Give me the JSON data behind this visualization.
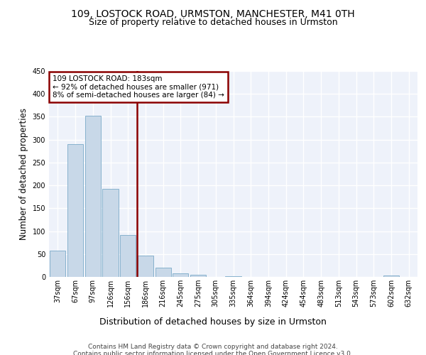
{
  "title1": "109, LOSTOCK ROAD, URMSTON, MANCHESTER, M41 0TH",
  "title2": "Size of property relative to detached houses in Urmston",
  "xlabel": "Distribution of detached houses by size in Urmston",
  "ylabel": "Number of detached properties",
  "bar_labels": [
    "37sqm",
    "67sqm",
    "97sqm",
    "126sqm",
    "156sqm",
    "186sqm",
    "216sqm",
    "245sqm",
    "275sqm",
    "305sqm",
    "335sqm",
    "364sqm",
    "394sqm",
    "424sqm",
    "454sqm",
    "483sqm",
    "513sqm",
    "543sqm",
    "573sqm",
    "602sqm",
    "632sqm"
  ],
  "bar_values": [
    57,
    290,
    353,
    192,
    91,
    47,
    20,
    8,
    5,
    0,
    2,
    0,
    0,
    0,
    0,
    0,
    0,
    0,
    0,
    3,
    0
  ],
  "bar_color": "#c8d8e8",
  "bar_edge_color": "#7aaac8",
  "background_color": "#eef2fa",
  "grid_color": "#ffffff",
  "vline_color": "#8b0000",
  "annotation_text": "109 LOSTOCK ROAD: 183sqm\n← 92% of detached houses are smaller (971)\n8% of semi-detached houses are larger (84) →",
  "annotation_box_color": "#8b0000",
  "annotation_bg": "#ffffff",
  "ylim": [
    0,
    450
  ],
  "yticks": [
    0,
    50,
    100,
    150,
    200,
    250,
    300,
    350,
    400,
    450
  ],
  "footer_text": "Contains HM Land Registry data © Crown copyright and database right 2024.\nContains public sector information licensed under the Open Government Licence v3.0.",
  "title1_fontsize": 10,
  "title2_fontsize": 9,
  "xlabel_fontsize": 9,
  "ylabel_fontsize": 8.5,
  "tick_fontsize": 7,
  "footer_fontsize": 6.5,
  "annotation_fontsize": 7.5
}
